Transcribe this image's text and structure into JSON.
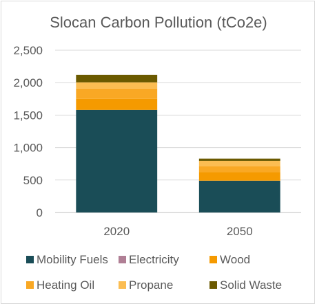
{
  "chart_data": {
    "type": "bar",
    "stacked": true,
    "title": "Slocan Carbon Pollution (tCo2e)",
    "xlabel": "",
    "ylabel": "",
    "categories": [
      "2020",
      "2050"
    ],
    "ylim": [
      0,
      2500
    ],
    "yticks": [
      0,
      500,
      1000,
      1500,
      2000,
      2500
    ],
    "ytick_labels": [
      "0",
      "500",
      "1,000",
      "1,500",
      "2,000",
      "2,500"
    ],
    "grid": true,
    "legend_position": "bottom",
    "series": [
      {
        "name": "Mobility Fuels",
        "values": [
          1580,
          490
        ],
        "color": "#1a4d57"
      },
      {
        "name": "Electricity",
        "values": [
          0,
          0
        ],
        "color": "#b07f95"
      },
      {
        "name": "Wood",
        "values": [
          170,
          130
        ],
        "color": "#f59a00"
      },
      {
        "name": "Heating Oil",
        "values": [
          160,
          90
        ],
        "color": "#f9a824"
      },
      {
        "name": "Propane",
        "values": [
          95,
          85
        ],
        "color": "#fbbd52"
      },
      {
        "name": "Solid Waste",
        "values": [
          115,
          35
        ],
        "color": "#6b5a00"
      }
    ]
  }
}
